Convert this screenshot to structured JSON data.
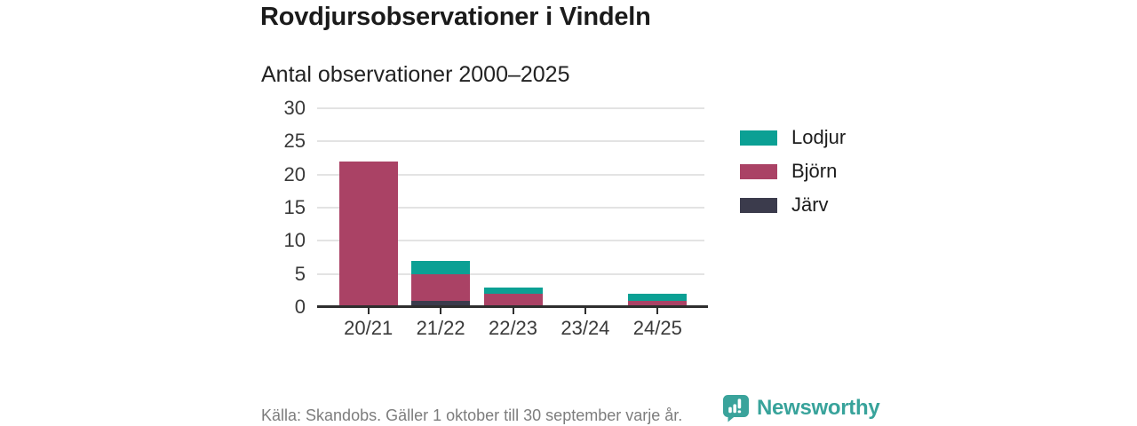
{
  "chart_data": {
    "type": "bar",
    "stacked": true,
    "title": "Rovdjursobservationer i Vindeln",
    "subtitle": "Antal observationer 2000–2025",
    "categories": [
      "20/21",
      "21/22",
      "22/23",
      "23/24",
      "24/25"
    ],
    "series": [
      {
        "name": "Järv",
        "key": "jarv",
        "color": "#3b3b4c",
        "values": [
          0,
          1,
          0,
          0,
          0
        ]
      },
      {
        "name": "Björn",
        "key": "bjorn",
        "color": "#aa4265",
        "values": [
          22,
          4,
          2,
          0,
          1
        ]
      },
      {
        "name": "Lodjur",
        "key": "lodjur",
        "color": "#0ba094",
        "values": [
          0,
          2,
          1,
          0,
          1
        ]
      }
    ],
    "totals": [
      22,
      7,
      3,
      0,
      2
    ],
    "ylim": [
      0,
      30
    ],
    "yticks": [
      0,
      5,
      10,
      15,
      20,
      25,
      30
    ],
    "xlabel": "",
    "ylabel": "",
    "grid": true,
    "legend": {
      "position": "right",
      "entries": [
        {
          "label": "Lodjur",
          "key": "lodjur",
          "color": "#0ba094"
        },
        {
          "label": "Björn",
          "key": "bjorn",
          "color": "#aa4265"
        },
        {
          "label": "Järv",
          "key": "jarv",
          "color": "#3b3b4c"
        }
      ]
    }
  },
  "footer": {
    "source": "Källa: Skandobs. Gäller 1 oktober till 30 september varje år.",
    "brand": "Newsworthy"
  },
  "colors": {
    "lodjur": "#0ba094",
    "bjorn": "#aa4265",
    "jarv": "#3b3b4c",
    "brand_teal": "#3aa39b",
    "gridline": "#e3e3e3",
    "axis": "#2e2e2e",
    "text": "#1c1c1c",
    "muted_text": "#7d7d7d"
  }
}
